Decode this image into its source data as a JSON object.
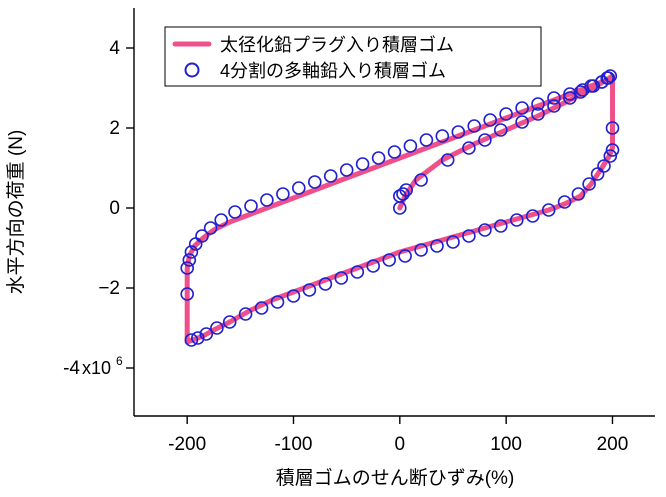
{
  "chart_data": {
    "type": "line",
    "title": "",
    "xlabel": "積層ゴムのせん断ひずみ(%)",
    "ylabel": "水平方向の荷重 (N)",
    "xlim": [
      -250,
      240
    ],
    "ylim": [
      -5.2,
      5.0
    ],
    "y_tick_multiplier_label": "x10",
    "y_tick_exponent": "6",
    "x_ticks": [
      -200,
      -100,
      0,
      100,
      200
    ],
    "x_tick_labels": [
      "-200",
      "-100",
      "0",
      "100",
      "200"
    ],
    "y_ticks": [
      -4,
      -2,
      0,
      2,
      4
    ],
    "y_tick_labels": [
      "-4",
      "−2",
      "0",
      "2",
      "4"
    ],
    "grid": false,
    "legend_position": "top-center",
    "series": [
      {
        "name": "太径化鉛プラグ入り積層ゴム",
        "style": "line",
        "color": "#f0508a",
        "x": [
          0,
          5,
          15,
          40,
          70,
          100,
          130,
          160,
          185,
          197,
          200,
          200,
          197,
          190,
          180,
          170,
          155,
          140,
          120,
          100,
          80,
          60,
          40,
          20,
          0,
          -20,
          -40,
          -60,
          -80,
          -100,
          -120,
          -140,
          -160,
          -175,
          -185,
          -195,
          -200,
          -200,
          -198,
          -193,
          -185,
          -175,
          -160,
          -140,
          -120,
          -100,
          -80,
          -60,
          -40,
          -20,
          0,
          20,
          40,
          60,
          80,
          100,
          120,
          140,
          160,
          180,
          195,
          200
        ],
        "y": [
          0,
          0.3,
          0.7,
          1.2,
          1.6,
          1.95,
          2.3,
          2.7,
          3.05,
          3.25,
          3.3,
          1.5,
          1.3,
          1.0,
          0.6,
          0.3,
          0.1,
          -0.05,
          -0.2,
          -0.35,
          -0.5,
          -0.65,
          -0.8,
          -0.95,
          -1.1,
          -1.3,
          -1.5,
          -1.7,
          -1.9,
          -2.1,
          -2.3,
          -2.55,
          -2.85,
          -3.05,
          -3.2,
          -3.3,
          -3.35,
          -1.5,
          -1.2,
          -0.95,
          -0.75,
          -0.55,
          -0.35,
          -0.15,
          0.05,
          0.25,
          0.45,
          0.65,
          0.85,
          1.05,
          1.25,
          1.45,
          1.65,
          1.85,
          2.05,
          2.25,
          2.45,
          2.65,
          2.85,
          3.05,
          3.2,
          3.3
        ]
      },
      {
        "name": "4分割の多軸鉛入り積層ゴム",
        "style": "scatter",
        "color": "#2020d0",
        "x": [
          0,
          0,
          3,
          6,
          20,
          45,
          65,
          80,
          95,
          115,
          130,
          145,
          160,
          170,
          180,
          190,
          195,
          198,
          200,
          200,
          198,
          192,
          186,
          178,
          168,
          155,
          140,
          125,
          110,
          95,
          80,
          65,
          50,
          35,
          20,
          5,
          -10,
          -25,
          -40,
          -55,
          -70,
          -85,
          -100,
          -115,
          -130,
          -145,
          -160,
          -172,
          -182,
          -190,
          -196,
          -200,
          -200,
          -198,
          -196,
          -192,
          -186,
          -178,
          -168,
          -155,
          -140,
          -125,
          -110,
          -95,
          -80,
          -65,
          -50,
          -35,
          -20,
          -5,
          10,
          25,
          40,
          55,
          70,
          85,
          100,
          115,
          130,
          145,
          160,
          172,
          182,
          190,
          196
        ],
        "y": [
          0,
          0.3,
          0.35,
          0.45,
          0.7,
          1.2,
          1.5,
          1.7,
          1.95,
          2.15,
          2.35,
          2.55,
          2.75,
          2.9,
          3.05,
          3.15,
          3.25,
          3.3,
          2.0,
          1.45,
          1.3,
          1.05,
          0.85,
          0.6,
          0.35,
          0.15,
          -0.05,
          -0.2,
          -0.3,
          -0.45,
          -0.55,
          -0.7,
          -0.85,
          -0.95,
          -1.05,
          -1.2,
          -1.3,
          -1.45,
          -1.6,
          -1.75,
          -1.9,
          -2.05,
          -2.2,
          -2.35,
          -2.5,
          -2.65,
          -2.85,
          -3.0,
          -3.15,
          -3.25,
          -3.3,
          -2.15,
          -1.5,
          -1.3,
          -1.1,
          -0.9,
          -0.7,
          -0.5,
          -0.3,
          -0.1,
          0.05,
          0.2,
          0.35,
          0.5,
          0.65,
          0.8,
          0.95,
          1.1,
          1.25,
          1.4,
          1.55,
          1.7,
          1.8,
          1.9,
          2.05,
          2.2,
          2.35,
          2.5,
          2.6,
          2.75,
          2.85,
          2.95,
          3.05,
          3.15,
          3.25
        ]
      }
    ]
  }
}
